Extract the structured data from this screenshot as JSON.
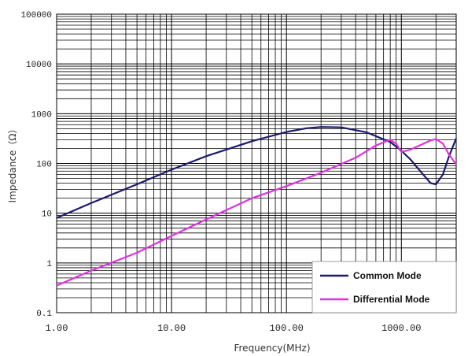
{
  "chart_data": {
    "type": "line",
    "xlabel": "Frequency(MHz)",
    "ylabel": "Impedance（Ω）",
    "x_scale": "log",
    "y_scale": "log",
    "xlim": [
      1,
      3000
    ],
    "ylim": [
      0.1,
      100000
    ],
    "grid": true,
    "legend_position": "bottom-right",
    "x_ticks": [
      "1.00",
      "10.00",
      "100.00",
      "1000.00"
    ],
    "y_ticks": [
      "0.1",
      "1",
      "10",
      "100",
      "1000",
      "10000",
      "100000"
    ],
    "series": [
      {
        "name": "Common Mode",
        "color": "#1a1a6e",
        "x": [
          1,
          2,
          5,
          10,
          20,
          50,
          100,
          150,
          200,
          300,
          500,
          800,
          1000,
          1200,
          1500,
          1800,
          2000,
          2300,
          2600,
          3000
        ],
        "y": [
          8,
          16,
          38,
          75,
          140,
          280,
          430,
          510,
          540,
          530,
          420,
          270,
          180,
          120,
          65,
          40,
          38,
          60,
          140,
          320
        ]
      },
      {
        "name": "Differential Mode",
        "color": "#e030e0",
        "x": [
          1,
          2,
          5,
          10,
          20,
          50,
          100,
          200,
          400,
          600,
          800,
          900,
          1000,
          1200,
          1500,
          1800,
          2000,
          2300,
          2600,
          3000
        ],
        "y": [
          0.35,
          0.7,
          1.6,
          3.5,
          7.5,
          20,
          35,
          65,
          130,
          230,
          300,
          250,
          170,
          190,
          240,
          290,
          310,
          250,
          150,
          95
        ]
      }
    ]
  }
}
